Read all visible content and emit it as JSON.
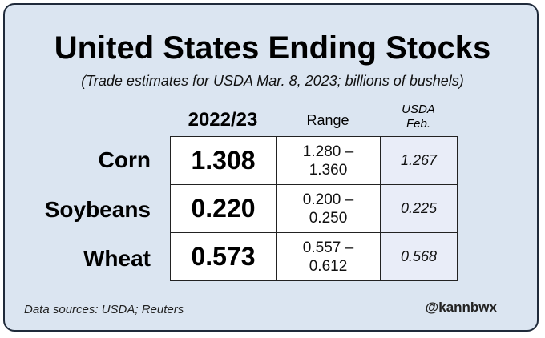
{
  "chart_data": {
    "type": "table",
    "title": "United States Ending Stocks",
    "subtitle": "(Trade estimates for USDA Mar. 8, 2023; billions of bushels)",
    "columns": [
      "2022/23",
      "Range",
      "USDA",
      "Feb."
    ],
    "rows": [
      {
        "label": "Corn",
        "estimate": "1.308",
        "range_low": "1.280 –",
        "range_high": "1.360",
        "usda_feb": "1.267"
      },
      {
        "label": "Soybeans",
        "estimate": "0.220",
        "range_low": "0.200 –",
        "range_high": "0.250",
        "usda_feb": "0.225"
      },
      {
        "label": "Wheat",
        "estimate": "0.573",
        "range_low": "0.557 –",
        "range_high": "0.612",
        "usda_feb": "0.568"
      }
    ],
    "source": "Data sources: USDA; Reuters",
    "credit": "@kannbwx"
  },
  "colors": {
    "background": "#dbe5f1",
    "border": "#1f2a3a",
    "usda_column_fill": "#e9edf8"
  }
}
